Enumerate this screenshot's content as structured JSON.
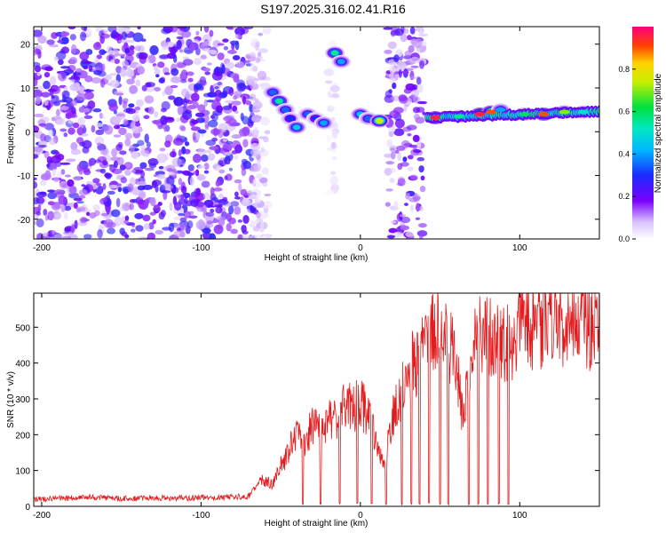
{
  "title": "S197.2025.316.02.41.R16",
  "colors": {
    "axis": "#000000",
    "snr_line": "#e41a1c"
  },
  "chart_data": [
    {
      "type": "heatmap",
      "xlabel": "Height of straight line (km)",
      "ylabel": "Frequency (Hz)",
      "xlim": [
        -205,
        150
      ],
      "ylim": [
        -24.5,
        24
      ],
      "x_ticks": [
        -200,
        -100,
        0,
        100
      ],
      "x_tick_labels": [
        "-200",
        "-100",
        "0",
        "100"
      ],
      "y_ticks": [
        -20,
        -10,
        0,
        10,
        20
      ],
      "y_tick_labels": [
        "-20",
        "-10",
        "0",
        "10",
        "20"
      ],
      "noise_regions": [
        {
          "x": [
            -205,
            -65
          ],
          "y": [
            -24.5,
            24
          ],
          "level": 0.22
        },
        {
          "x": [
            -68,
            -58
          ],
          "y": [
            -24.5,
            24
          ],
          "level": 0.08
        },
        {
          "x": [
            -20,
            -15
          ],
          "y": [
            -15,
            24
          ],
          "level": 0.06
        },
        {
          "x": [
            17,
            40
          ],
          "y": [
            -24.5,
            24
          ],
          "level": 0.2
        }
      ],
      "features": [
        {
          "x": -55,
          "y": 9,
          "amp": 0.35
        },
        {
          "x": -51,
          "y": 7,
          "amp": 0.55
        },
        {
          "x": -47,
          "y": 5,
          "amp": 0.35
        },
        {
          "x": -44,
          "y": 3,
          "amp": 0.3
        },
        {
          "x": -40,
          "y": 1,
          "amp": 0.45
        },
        {
          "x": -33,
          "y": 4,
          "amp": 0.35
        },
        {
          "x": -28,
          "y": 3,
          "amp": 0.3
        },
        {
          "x": -23,
          "y": 2,
          "amp": 0.4
        },
        {
          "x": -16,
          "y": 18,
          "amp": 0.55
        },
        {
          "x": -12,
          "y": 16,
          "amp": 0.4
        },
        {
          "x": 0,
          "y": 4,
          "amp": 0.45
        },
        {
          "x": 5,
          "y": 3,
          "amp": 0.35
        },
        {
          "x": 12,
          "y": 2.5,
          "amp": 0.75
        },
        {
          "x": 47,
          "y": 3.2,
          "amp": 0.95
        },
        {
          "x": 62,
          "y": 3.5,
          "amp": 0.55
        },
        {
          "x": 75,
          "y": 4,
          "amp": 0.95
        },
        {
          "x": 82,
          "y": 4.5,
          "amp": 0.9
        },
        {
          "x": 88,
          "y": 5,
          "amp": 0.4
        },
        {
          "x": 103,
          "y": 4,
          "amp": 0.6
        },
        {
          "x": 115,
          "y": 4,
          "amp": 0.9
        },
        {
          "x": 128,
          "y": 4.5,
          "amp": 0.7
        },
        {
          "x": 140,
          "y": 4.5,
          "amp": 0.5
        }
      ],
      "colorbar": {
        "label": "Normalized spectral amplitude",
        "range": [
          0,
          1
        ],
        "ticks": [
          0.0,
          0.2,
          0.4,
          0.6,
          0.8
        ],
        "tick_labels": [
          "0.0",
          "0.2",
          "0.4",
          "0.6",
          "0.8"
        ]
      }
    },
    {
      "type": "line",
      "xlabel": "Height of straight line (km)",
      "ylabel": "SNR (10 * v/v)",
      "xlim": [
        -205,
        150
      ],
      "ylim": [
        0,
        595
      ],
      "x_ticks": [
        -200,
        -100,
        0,
        100
      ],
      "x_tick_labels": [
        "-200",
        "-100",
        "0",
        "100"
      ],
      "y_ticks": [
        0,
        100,
        200,
        300,
        400,
        500
      ],
      "y_tick_labels": [
        "0",
        "100",
        "200",
        "300",
        "400",
        "500"
      ],
      "series": [
        {
          "name": "SNR",
          "x": [
            -205,
            -190,
            -170,
            -150,
            -130,
            -110,
            -90,
            -70,
            -62,
            -55,
            -50,
            -45,
            -40,
            -35,
            -30,
            -25,
            -20,
            -15,
            -10,
            -5,
            0,
            5,
            10,
            15,
            20,
            25,
            30,
            35,
            40,
            45,
            50,
            55,
            60,
            65,
            70,
            75,
            80,
            85,
            90,
            95,
            100,
            110,
            120,
            130,
            140,
            150
          ],
          "y": [
            20,
            22,
            25,
            22,
            24,
            23,
            25,
            28,
            80,
            60,
            120,
            160,
            210,
            190,
            230,
            220,
            260,
            240,
            290,
            280,
            300,
            260,
            180,
            120,
            260,
            320,
            400,
            420,
            460,
            490,
            500,
            480,
            400,
            250,
            470,
            500,
            480,
            510,
            460,
            470,
            500,
            520,
            530,
            540,
            520,
            525
          ]
        }
      ],
      "dropouts": [
        -36,
        -25,
        -13,
        -2,
        7,
        16,
        26,
        32,
        37,
        43,
        50,
        55,
        68,
        74,
        80,
        87,
        93
      ]
    }
  ]
}
